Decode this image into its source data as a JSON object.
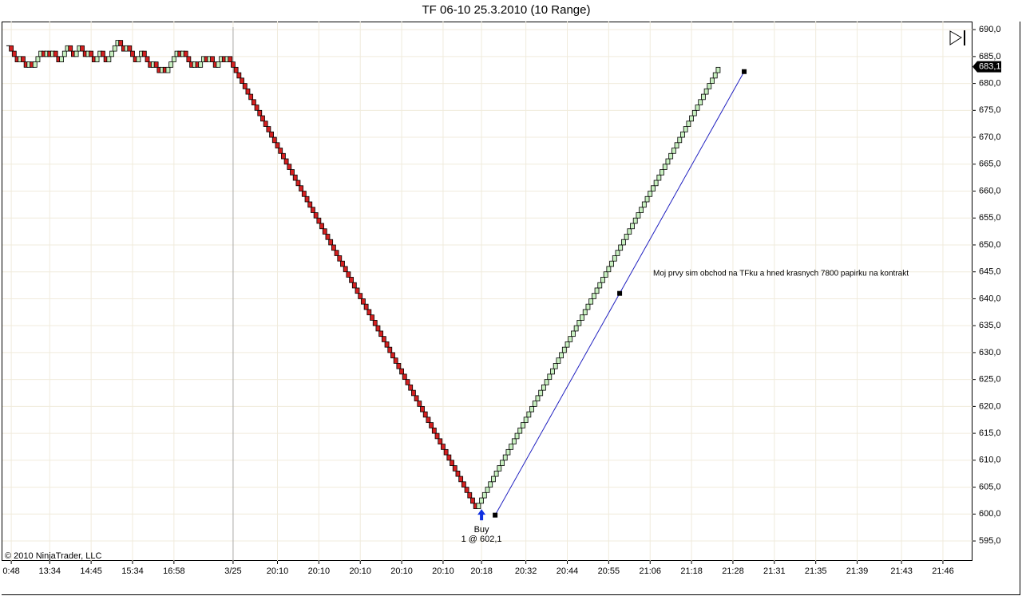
{
  "chart_data": {
    "type": "rangebar",
    "title": "TF 06-10  25.3.2010 (10 Range)",
    "copyright": "© 2010 NinjaTrader, LLC",
    "annotation": "Moj prvy sim obchod na TFku a hned krasnych 7800 papirku na kontrakt",
    "up_color": "#c8f0c0",
    "down_color": "#d42020",
    "grid": true,
    "xlim": [
      -2,
      326
    ],
    "ylim": [
      591.3,
      691.5
    ],
    "close": [
      687,
      686,
      685,
      684,
      685,
      684,
      683,
      684,
      683,
      684,
      685,
      686,
      685,
      686,
      685,
      686,
      685,
      684,
      685,
      686,
      687,
      686,
      685,
      686,
      687,
      686,
      685,
      686,
      685,
      684,
      685,
      686,
      685,
      684,
      685,
      686,
      687,
      688,
      687,
      686,
      687,
      686,
      685,
      684,
      685,
      686,
      685,
      684,
      683,
      684,
      683,
      682,
      683,
      682,
      683,
      684,
      685,
      686,
      685,
      686,
      685,
      684,
      683,
      684,
      683,
      684,
      685,
      684,
      685,
      684,
      683,
      684,
      685,
      684,
      685,
      684,
      683,
      682,
      681,
      680,
      679,
      678,
      677,
      676,
      675,
      674,
      673,
      672,
      671,
      670,
      669,
      668,
      667,
      666,
      665,
      664,
      663,
      662,
      661,
      660,
      659,
      658,
      657,
      656,
      655,
      654,
      653,
      652,
      651,
      650,
      649,
      648,
      647,
      646,
      645,
      644,
      643,
      642,
      641,
      640,
      639,
      638,
      637,
      636,
      635,
      634,
      633,
      632,
      631,
      630,
      629,
      628,
      627,
      626,
      625,
      624,
      623,
      622,
      621,
      620,
      619,
      618,
      617,
      616,
      615,
      614,
      613,
      612,
      611,
      610,
      609,
      608,
      607,
      606,
      605,
      604,
      603,
      602,
      601,
      602,
      603,
      604,
      605,
      606,
      607,
      608,
      609,
      610,
      611,
      612,
      613,
      614,
      615,
      616,
      617,
      618,
      619,
      620,
      621,
      622,
      623,
      624,
      625,
      626,
      627,
      628,
      629,
      630,
      631,
      632,
      633,
      634,
      635,
      636,
      637,
      638,
      639,
      640,
      641,
      642,
      643,
      644,
      645,
      646,
      647,
      648,
      649,
      650,
      651,
      652,
      653,
      654,
      655,
      656,
      657,
      658,
      659,
      660,
      661,
      662,
      663,
      664,
      665,
      666,
      667,
      668,
      669,
      670,
      671,
      672,
      673,
      674,
      675,
      676,
      677,
      678,
      679,
      680,
      681,
      682,
      683
    ],
    "xticks": [
      {
        "value": 1,
        "label": "0:48"
      },
      {
        "value": 14,
        "label": "13:34"
      },
      {
        "value": 28,
        "label": "14:45"
      },
      {
        "value": 42,
        "label": "15:34"
      },
      {
        "value": 56,
        "label": "16:58"
      },
      {
        "value": 76,
        "label": "3/25"
      },
      {
        "value": 91,
        "label": "20:10"
      },
      {
        "value": 105,
        "label": "20:10"
      },
      {
        "value": 119,
        "label": "20:10"
      },
      {
        "value": 133,
        "label": "20:10"
      },
      {
        "value": 147,
        "label": "20:10"
      },
      {
        "value": 160,
        "label": "20:18"
      },
      {
        "value": 175,
        "label": "20:32"
      },
      {
        "value": 189,
        "label": "20:44"
      },
      {
        "value": 203,
        "label": "20:55"
      },
      {
        "value": 217,
        "label": "21:06"
      },
      {
        "value": 231,
        "label": "21:18"
      },
      {
        "value": 245,
        "label": "21:28"
      },
      {
        "value": 259,
        "label": "21:31"
      },
      {
        "value": 273,
        "label": "21:35"
      },
      {
        "value": 287,
        "label": "21:39"
      },
      {
        "value": 302,
        "label": "21:43"
      },
      {
        "value": 316,
        "label": "21:46"
      }
    ],
    "session_breaks": [
      76
    ],
    "yticks": [
      {
        "value": 595,
        "label": "595,0"
      },
      {
        "value": 600,
        "label": "600,0"
      },
      {
        "value": 605,
        "label": "605,0"
      },
      {
        "value": 610,
        "label": "610,0"
      },
      {
        "value": 615,
        "label": "615,0"
      },
      {
        "value": 620,
        "label": "620,0"
      },
      {
        "value": 625,
        "label": "625,0"
      },
      {
        "value": 630,
        "label": "630,0"
      },
      {
        "value": 635,
        "label": "635,0"
      },
      {
        "value": 640,
        "label": "640,0"
      },
      {
        "value": 645,
        "label": "645,0"
      },
      {
        "value": 650,
        "label": "650,0"
      },
      {
        "value": 655,
        "label": "655,0"
      },
      {
        "value": 660,
        "label": "660,0"
      },
      {
        "value": 665,
        "label": "665,0"
      },
      {
        "value": 670,
        "label": "670,0"
      },
      {
        "value": 675,
        "label": "675,0"
      },
      {
        "value": 680,
        "label": "680,0"
      },
      {
        "value": 685,
        "label": "685,0"
      },
      {
        "value": 690,
        "label": "690,0"
      }
    ],
    "last_price": {
      "value": 683.1,
      "label": "683,1"
    },
    "execution": {
      "x": 160,
      "price": 602.1,
      "label": "Buy",
      "detail": "1 @ 602,1"
    },
    "trendline": {
      "x": [
        164.6,
        248.8
      ],
      "y": [
        599.8,
        682.2
      ]
    }
  }
}
